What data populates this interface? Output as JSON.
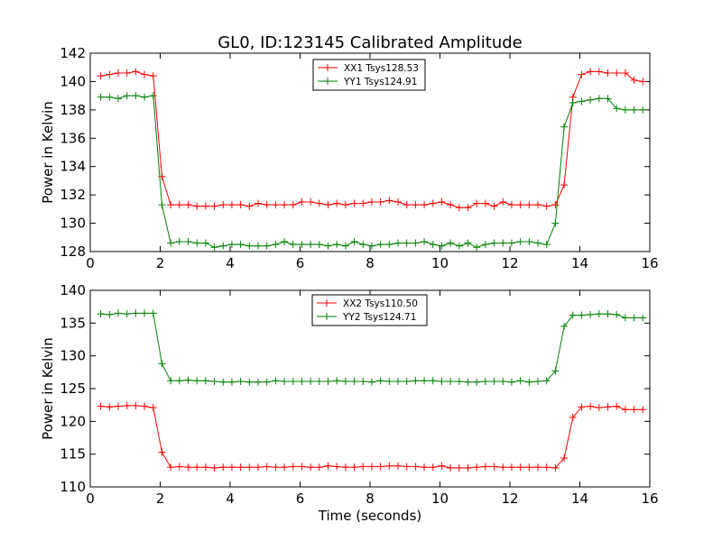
{
  "title": "GL0, ID:123145 Calibrated Amplitude",
  "colors": {
    "xx": "#ff0000",
    "yy": "#008000"
  },
  "chart_data": [
    {
      "type": "line",
      "title": "GL0, ID:123145 Calibrated Amplitude",
      "xlabel": "",
      "ylabel": "Power in Kelvin",
      "xlim": [
        0,
        16
      ],
      "ylim": [
        128,
        142
      ],
      "xticks": [
        0,
        2,
        4,
        6,
        8,
        10,
        12,
        14,
        16
      ],
      "yticks": [
        128,
        130,
        132,
        134,
        136,
        138,
        140,
        142
      ],
      "grid": false,
      "legend_position": "top-center",
      "x": [
        0.3,
        0.55,
        0.8,
        1.05,
        1.3,
        1.55,
        1.8,
        2.05,
        2.3,
        2.55,
        2.8,
        3.05,
        3.3,
        3.55,
        3.8,
        4.05,
        4.3,
        4.55,
        4.8,
        5.05,
        5.3,
        5.55,
        5.8,
        6.05,
        6.3,
        6.55,
        6.8,
        7.05,
        7.3,
        7.55,
        7.8,
        8.05,
        8.3,
        8.55,
        8.8,
        9.05,
        9.3,
        9.55,
        9.8,
        10.05,
        10.3,
        10.55,
        10.8,
        11.05,
        11.3,
        11.55,
        11.8,
        12.05,
        12.3,
        12.55,
        12.8,
        13.05,
        13.3,
        13.55,
        13.8,
        14.05,
        14.3,
        14.55,
        14.8,
        15.05,
        15.3,
        15.55,
        15.8
      ],
      "series": [
        {
          "name": "XX1 Tsys128.53",
          "color": "#ff0000",
          "values": [
            140.4,
            140.5,
            140.6,
            140.6,
            140.7,
            140.5,
            140.4,
            133.3,
            131.3,
            131.3,
            131.3,
            131.2,
            131.2,
            131.2,
            131.3,
            131.3,
            131.3,
            131.2,
            131.4,
            131.3,
            131.3,
            131.3,
            131.3,
            131.5,
            131.5,
            131.4,
            131.3,
            131.4,
            131.3,
            131.4,
            131.4,
            131.5,
            131.5,
            131.6,
            131.5,
            131.3,
            131.3,
            131.3,
            131.4,
            131.5,
            131.3,
            131.1,
            131.1,
            131.4,
            131.4,
            131.2,
            131.5,
            131.3,
            131.3,
            131.3,
            131.3,
            131.2,
            131.3,
            132.7,
            138.9,
            140.5,
            140.7,
            140.7,
            140.6,
            140.6,
            140.6,
            140.1,
            140.0
          ]
        },
        {
          "name": "YY1 Tsys124.91",
          "color": "#008000",
          "values": [
            138.9,
            138.9,
            138.8,
            139.0,
            139.0,
            138.9,
            139.0,
            131.3,
            128.6,
            128.7,
            128.7,
            128.6,
            128.6,
            128.3,
            128.4,
            128.5,
            128.5,
            128.4,
            128.4,
            128.4,
            128.5,
            128.7,
            128.5,
            128.5,
            128.5,
            128.5,
            128.4,
            128.5,
            128.4,
            128.7,
            128.5,
            128.4,
            128.5,
            128.5,
            128.6,
            128.6,
            128.6,
            128.7,
            128.5,
            128.4,
            128.6,
            128.4,
            128.6,
            128.3,
            128.5,
            128.6,
            128.6,
            128.6,
            128.7,
            128.7,
            128.6,
            128.5,
            130.0,
            136.8,
            138.5,
            138.6,
            138.7,
            138.8,
            138.8,
            138.1,
            138.0,
            138.0,
            138.0
          ]
        }
      ]
    },
    {
      "type": "line",
      "title": "",
      "xlabel": "Time (seconds)",
      "ylabel": "Power in Kelvin",
      "xlim": [
        0,
        16
      ],
      "ylim": [
        110,
        140
      ],
      "xticks": [
        0,
        2,
        4,
        6,
        8,
        10,
        12,
        14,
        16
      ],
      "yticks": [
        110,
        115,
        120,
        125,
        130,
        135,
        140
      ],
      "grid": false,
      "legend_position": "top-center",
      "x": [
        0.3,
        0.55,
        0.8,
        1.05,
        1.3,
        1.55,
        1.8,
        2.05,
        2.3,
        2.55,
        2.8,
        3.05,
        3.3,
        3.55,
        3.8,
        4.05,
        4.3,
        4.55,
        4.8,
        5.05,
        5.3,
        5.55,
        5.8,
        6.05,
        6.3,
        6.55,
        6.8,
        7.05,
        7.3,
        7.55,
        7.8,
        8.05,
        8.3,
        8.55,
        8.8,
        9.05,
        9.3,
        9.55,
        9.8,
        10.05,
        10.3,
        10.55,
        10.8,
        11.05,
        11.3,
        11.55,
        11.8,
        12.05,
        12.3,
        12.55,
        12.8,
        13.05,
        13.3,
        13.55,
        13.8,
        14.05,
        14.3,
        14.55,
        14.8,
        15.05,
        15.3,
        15.55,
        15.8
      ],
      "series": [
        {
          "name": "XX2 Tsys110.50",
          "color": "#ff0000",
          "values": [
            122.3,
            122.2,
            122.3,
            122.4,
            122.4,
            122.3,
            122.1,
            115.3,
            113.0,
            113.1,
            113.0,
            113.0,
            113.0,
            112.9,
            113.0,
            113.0,
            113.0,
            113.0,
            113.0,
            113.1,
            113.0,
            113.0,
            113.1,
            113.1,
            113.0,
            113.0,
            113.2,
            113.1,
            113.0,
            113.0,
            113.1,
            113.1,
            113.1,
            113.2,
            113.2,
            113.1,
            113.1,
            113.0,
            113.0,
            113.2,
            112.9,
            112.9,
            112.9,
            113.0,
            113.1,
            113.1,
            113.0,
            113.0,
            113.0,
            113.0,
            113.0,
            113.0,
            112.9,
            114.4,
            120.6,
            122.2,
            122.3,
            122.1,
            122.2,
            122.3,
            121.8,
            121.8,
            121.8
          ]
        },
        {
          "name": "YY2 Tsys124.71",
          "color": "#008000",
          "values": [
            136.4,
            136.3,
            136.5,
            136.4,
            136.5,
            136.5,
            136.5,
            128.8,
            126.2,
            126.2,
            126.3,
            126.2,
            126.2,
            126.1,
            126.0,
            126.0,
            126.1,
            126.0,
            126.0,
            126.0,
            126.2,
            126.1,
            126.1,
            126.1,
            126.1,
            126.1,
            126.1,
            126.2,
            126.1,
            126.1,
            126.1,
            126.0,
            126.2,
            126.1,
            126.1,
            126.1,
            126.2,
            126.2,
            126.2,
            126.1,
            126.1,
            126.1,
            126.0,
            126.0,
            126.1,
            126.1,
            126.1,
            126.0,
            126.2,
            126.0,
            126.1,
            126.2,
            127.7,
            134.5,
            136.2,
            136.2,
            136.3,
            136.4,
            136.4,
            136.3,
            135.8,
            135.8,
            135.8
          ]
        }
      ]
    }
  ]
}
